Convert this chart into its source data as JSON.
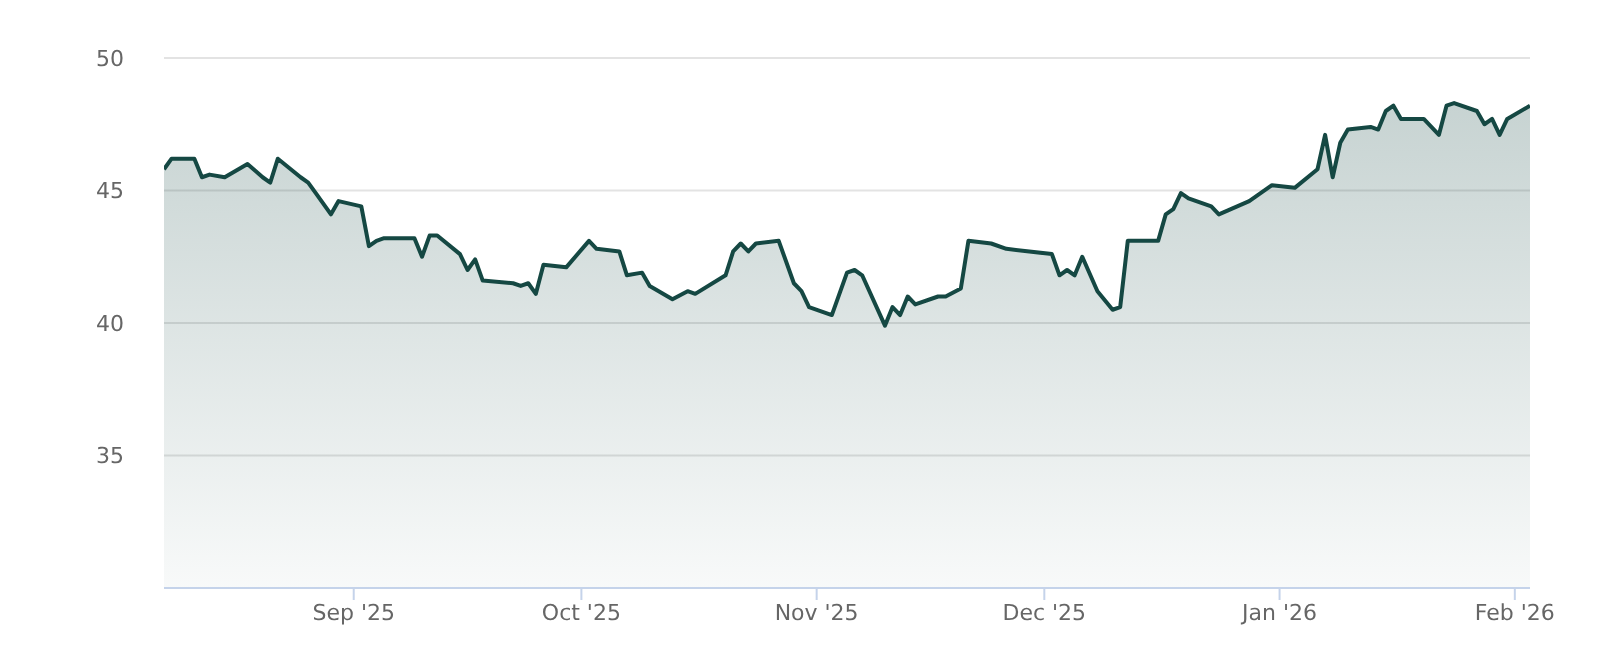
{
  "chart_data": {
    "type": "area",
    "x": [
      "2025-08-07",
      "2025-08-08",
      "2025-08-11",
      "2025-08-12",
      "2025-08-13",
      "2025-08-15",
      "2025-08-18",
      "2025-08-20",
      "2025-08-21",
      "2025-08-22",
      "2025-08-25",
      "2025-08-26",
      "2025-08-27",
      "2025-08-29",
      "2025-08-30",
      "2025-09-02",
      "2025-09-03",
      "2025-09-04",
      "2025-09-05",
      "2025-09-09",
      "2025-09-10",
      "2025-09-11",
      "2025-09-12",
      "2025-09-15",
      "2025-09-16",
      "2025-09-17",
      "2025-09-18",
      "2025-09-22",
      "2025-09-23",
      "2025-09-24",
      "2025-09-25",
      "2025-09-26",
      "2025-09-29",
      "2025-10-02",
      "2025-10-03",
      "2025-10-06",
      "2025-10-07",
      "2025-10-09",
      "2025-10-10",
      "2025-10-13",
      "2025-10-15",
      "2025-10-16",
      "2025-10-20",
      "2025-10-21",
      "2025-10-22",
      "2025-10-23",
      "2025-10-24",
      "2025-10-27",
      "2025-10-29",
      "2025-10-30",
      "2025-10-31",
      "2025-11-03",
      "2025-11-05",
      "2025-11-06",
      "2025-11-07",
      "2025-11-10",
      "2025-11-11",
      "2025-11-12",
      "2025-11-13",
      "2025-11-14",
      "2025-11-17",
      "2025-11-18",
      "2025-11-20",
      "2025-11-21",
      "2025-11-24",
      "2025-11-26",
      "2025-12-02",
      "2025-12-03",
      "2025-12-04",
      "2025-12-05",
      "2025-12-06",
      "2025-12-08",
      "2025-12-10",
      "2025-12-11",
      "2025-12-12",
      "2025-12-16",
      "2025-12-17",
      "2025-12-18",
      "2025-12-19",
      "2025-12-20",
      "2025-12-23",
      "2025-12-24",
      "2025-12-28",
      "2025-12-31",
      "2026-01-03",
      "2026-01-06",
      "2026-01-07",
      "2026-01-08",
      "2026-01-09",
      "2026-01-10",
      "2026-01-13",
      "2026-01-14",
      "2026-01-15",
      "2026-01-16",
      "2026-01-17",
      "2026-01-20",
      "2026-01-21",
      "2026-01-22",
      "2026-01-23",
      "2026-01-24",
      "2026-01-27",
      "2026-01-28",
      "2026-01-29",
      "2026-01-30",
      "2026-01-31",
      "2026-02-03"
    ],
    "series": [
      {
        "color": "#154843",
        "values": [
          45.8,
          46.2,
          46.2,
          45.5,
          45.6,
          45.5,
          46.0,
          45.5,
          45.3,
          46.2,
          45.5,
          45.3,
          44.9,
          44.1,
          44.6,
          44.4,
          42.9,
          43.1,
          43.2,
          43.2,
          42.5,
          43.3,
          43.3,
          42.6,
          42.0,
          42.4,
          41.6,
          41.5,
          41.4,
          41.5,
          41.1,
          42.2,
          42.1,
          43.1,
          42.8,
          42.7,
          41.8,
          41.9,
          41.4,
          40.9,
          41.2,
          41.1,
          41.8,
          42.7,
          43.0,
          42.7,
          43.0,
          43.1,
          41.5,
          41.2,
          40.6,
          40.3,
          41.9,
          42.0,
          41.8,
          39.9,
          40.6,
          40.3,
          41.0,
          40.7,
          41.0,
          41.0,
          41.3,
          43.1,
          43.0,
          42.8,
          42.6,
          41.8,
          42.0,
          41.8,
          42.5,
          41.2,
          40.5,
          40.6,
          43.1,
          43.1,
          44.1,
          44.3,
          44.9,
          44.7,
          44.4,
          44.1,
          44.6,
          45.2,
          45.1,
          45.8,
          47.1,
          45.5,
          46.8,
          47.3,
          47.4,
          47.3,
          48.0,
          48.2,
          47.7,
          47.7,
          47.4,
          47.1,
          48.2,
          48.3,
          48.0,
          47.5,
          47.7,
          47.1,
          47.7,
          48.2
        ]
      }
    ],
    "xlim": [
      "2025-08-07",
      "2026-02-03"
    ],
    "xticks": [
      {
        "value": "2025-09-01",
        "label": "Sep '25"
      },
      {
        "value": "2025-10-01",
        "label": "Oct '25"
      },
      {
        "value": "2025-11-01",
        "label": "Nov '25"
      },
      {
        "value": "2025-12-01",
        "label": "Dec '25"
      },
      {
        "value": "2026-01-01",
        "label": "Jan '26"
      },
      {
        "value": "2026-02-01",
        "label": "Feb '26"
      }
    ],
    "ylim": [
      30,
      50
    ],
    "yticks": [
      35,
      40,
      45,
      50
    ],
    "grid": "y"
  }
}
